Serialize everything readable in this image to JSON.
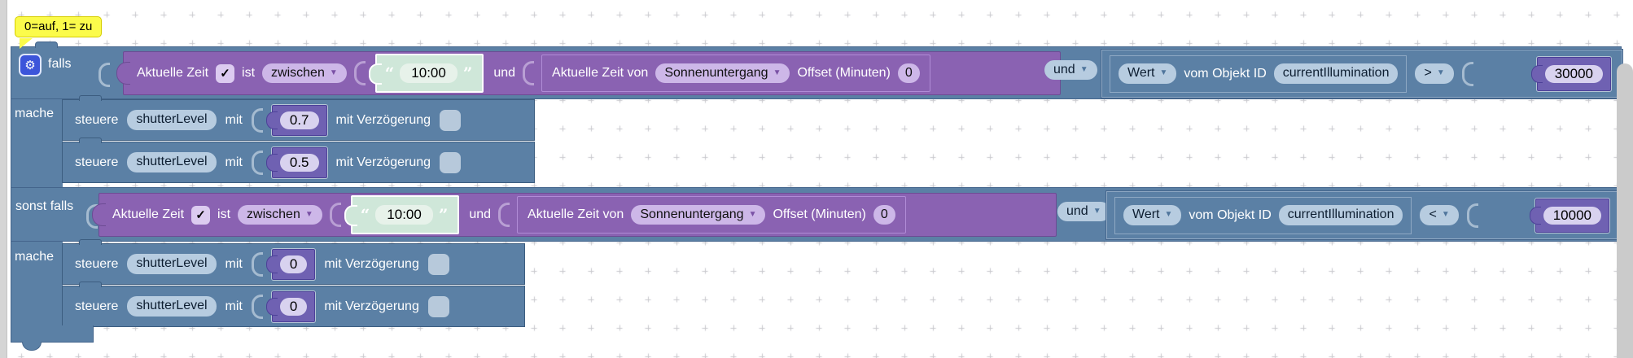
{
  "icons": {
    "gear": "⚙",
    "dropdown": "▼",
    "check": "✓",
    "quote_open": "“",
    "quote_close": "”"
  },
  "colors": {
    "block_blue": "#5b80a5",
    "block_purple": "#8a62b2",
    "string_green": "#cfe7d9",
    "number_purple": "#6f61b2",
    "comment_yellow": "#fbfb4b"
  },
  "comment": {
    "text": "0=auf, 1= zu"
  },
  "labels": {
    "falls": "falls",
    "mache": "mache",
    "sonst_falls": "sonst falls"
  },
  "cond1": {
    "time_label": "Aktuelle Zeit",
    "ist": "ist",
    "mode": "zwischen",
    "start_time": "10:00",
    "und_word": "und",
    "astro_label": "Aktuelle Zeit von",
    "astro_event": "Sonnenuntergang",
    "offset_label": "Offset (Minuten)",
    "offset_value": "0",
    "logic_op": "und",
    "wert_label": "Wert",
    "objekt_label": "vom Objekt ID",
    "object_id": "currentIllumination",
    "comparator": ">",
    "threshold": "30000"
  },
  "cond2": {
    "time_label": "Aktuelle Zeit",
    "ist": "ist",
    "mode": "zwischen",
    "start_time": "10:00",
    "und_word": "und",
    "astro_label": "Aktuelle Zeit von",
    "astro_event": "Sonnenuntergang",
    "offset_label": "Offset (Minuten)",
    "offset_value": "0",
    "logic_op": "und",
    "wert_label": "Wert",
    "objekt_label": "vom Objekt ID",
    "object_id": "currentIllumination",
    "comparator": "<",
    "threshold": "10000"
  },
  "actions1": [
    {
      "verb": "steuere",
      "object": "shutterLevel",
      "mit": "mit",
      "value": "0.7",
      "delay_label": "mit Verzögerung"
    },
    {
      "verb": "steuere",
      "object": "shutterLevel",
      "mit": "mit",
      "value": "0.5",
      "delay_label": "mit Verzögerung"
    }
  ],
  "actions2": [
    {
      "verb": "steuere",
      "object": "shutterLevel",
      "mit": "mit",
      "value": "0",
      "delay_label": "mit Verzögerung"
    },
    {
      "verb": "steuere",
      "object": "shutterLevel",
      "mit": "mit",
      "value": "0",
      "delay_label": "mit Verzögerung"
    }
  ]
}
